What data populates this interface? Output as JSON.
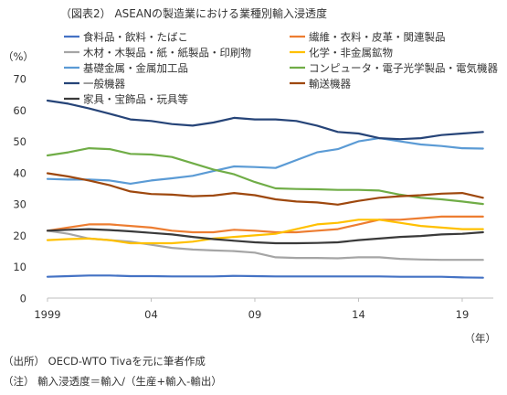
{
  "chart_data": {
    "type": "line",
    "title": "（図表2） ASEANの製造業における業種別輸入浸透度",
    "ylabel": "（%）",
    "xlabel": "（年）",
    "ylim": [
      0,
      70
    ],
    "xlim": [
      1999,
      2020.5
    ],
    "yticks": [
      0,
      10,
      20,
      30,
      40,
      50,
      60,
      70
    ],
    "xticks": [
      1999,
      2004,
      2009,
      2014,
      2019
    ],
    "xtick_labels": [
      "1999",
      "04",
      "09",
      "14",
      "19"
    ],
    "grid": false,
    "x": [
      1999,
      2000,
      2001,
      2002,
      2003,
      2004,
      2005,
      2006,
      2007,
      2008,
      2009,
      2010,
      2011,
      2012,
      2013,
      2014,
      2015,
      2016,
      2017,
      2018,
      2019,
      2020
    ],
    "series": [
      {
        "name": "食料品・飲料・たばこ",
        "color": "#4472c4",
        "values": [
          6.8,
          7.0,
          7.2,
          7.2,
          7.0,
          7.0,
          6.9,
          6.9,
          6.9,
          7.1,
          7.0,
          6.9,
          6.9,
          6.9,
          6.9,
          6.9,
          6.9,
          6.8,
          6.8,
          6.8,
          6.6,
          6.5
        ]
      },
      {
        "name": "繊維・衣料・皮革・関連製品",
        "color": "#ed7d31",
        "values": [
          21.5,
          22.5,
          23.5,
          23.5,
          23.0,
          22.5,
          21.5,
          21.0,
          21.0,
          21.8,
          21.5,
          21.0,
          21.0,
          21.5,
          22.0,
          23.5,
          25.0,
          25.0,
          25.5,
          26.0,
          26.0,
          26.0
        ]
      },
      {
        "name": "木材・木製品・紙・紙製品・印刷物",
        "color": "#a5a5a5",
        "values": [
          21.5,
          20.5,
          19.0,
          18.5,
          18.0,
          17.0,
          16.0,
          15.5,
          15.2,
          15.0,
          14.5,
          13.0,
          12.8,
          12.8,
          12.7,
          13.0,
          13.0,
          12.5,
          12.3,
          12.2,
          12.2,
          12.2
        ]
      },
      {
        "name": "化学・非金属鉱物",
        "color": "#ffc000",
        "values": [
          18.5,
          18.8,
          19.0,
          18.5,
          17.5,
          17.5,
          17.5,
          18.0,
          19.0,
          19.5,
          20.0,
          20.5,
          22.0,
          23.5,
          24.0,
          25.0,
          25.0,
          24.0,
          23.0,
          22.5,
          22.0,
          22.0
        ]
      },
      {
        "name": "基礎金属・金属加工品",
        "color": "#5b9bd5",
        "values": [
          38.0,
          37.8,
          37.8,
          37.5,
          36.5,
          37.5,
          38.2,
          39.0,
          40.5,
          42.0,
          41.8,
          41.5,
          44.0,
          46.5,
          47.5,
          50.0,
          51.0,
          50.0,
          49.0,
          48.5,
          47.8,
          47.7
        ]
      },
      {
        "name": "コンピュータ・電子光学製品・電気機器",
        "color": "#70ad47",
        "values": [
          45.5,
          46.5,
          47.8,
          47.5,
          46.0,
          45.8,
          45.0,
          43.0,
          41.0,
          39.5,
          37.0,
          35.0,
          34.8,
          34.7,
          34.5,
          34.5,
          34.3,
          33.0,
          32.0,
          31.5,
          30.8,
          30.0
        ]
      },
      {
        "name": "一般機器",
        "color": "#264478",
        "values": [
          63.0,
          62.0,
          60.5,
          58.8,
          57.0,
          56.5,
          55.5,
          55.0,
          56.0,
          57.5,
          57.0,
          57.0,
          56.5,
          55.0,
          53.0,
          52.5,
          51.0,
          50.7,
          51.0,
          52.0,
          52.5,
          53.0
        ]
      },
      {
        "name": "輸送機器",
        "color": "#9e480e",
        "values": [
          39.8,
          38.8,
          37.5,
          36.0,
          34.0,
          33.2,
          33.0,
          32.5,
          32.7,
          33.5,
          32.8,
          31.5,
          30.8,
          30.5,
          29.8,
          31.0,
          32.0,
          32.5,
          32.8,
          33.3,
          33.5,
          32.0
        ]
      },
      {
        "name": "家具・宝飾品・玩具等",
        "color": "#3a3a3a",
        "values": [
          21.5,
          21.8,
          22.0,
          21.7,
          21.3,
          20.8,
          20.3,
          19.5,
          18.8,
          18.3,
          17.8,
          17.5,
          17.5,
          17.6,
          17.8,
          18.5,
          19.0,
          19.5,
          19.8,
          20.3,
          20.5,
          21.0
        ]
      }
    ]
  },
  "notes": {
    "source": "（出所） OECD-WTO Tivaを元に筆者作成",
    "note": "（注） 輸入浸透度＝輸入/（生産+輸入-輸出）"
  }
}
